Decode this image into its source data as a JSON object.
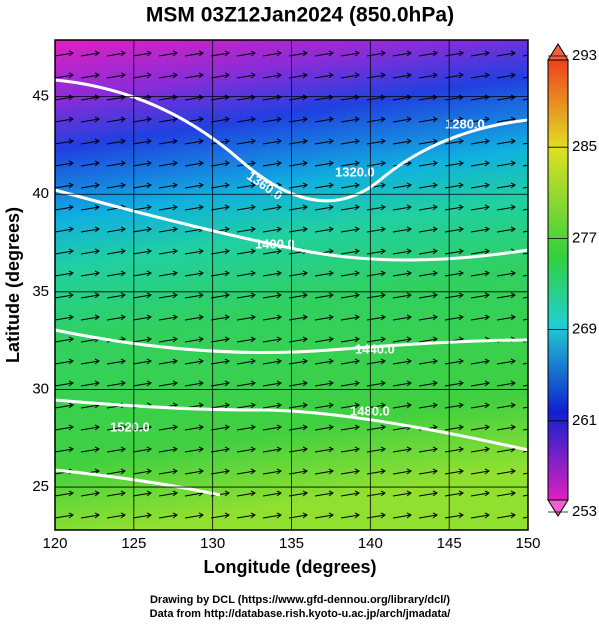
{
  "title": "MSM 03Z12Jan2024 (850.0hPa)",
  "x_axis": {
    "label": "Longitude (degrees)",
    "lim": [
      120,
      150
    ],
    "ticks": [
      120,
      125,
      130,
      135,
      140,
      145,
      150
    ]
  },
  "y_axis": {
    "label": "Latitude  (degrees)",
    "lim": [
      22.8,
      47.9
    ],
    "ticks": [
      25,
      30,
      35,
      40,
      45
    ]
  },
  "colorbar": {
    "lim": [
      253,
      293
    ],
    "ticks": [
      253,
      261,
      269,
      277,
      285,
      293
    ]
  },
  "contour_labels": [
    "1360.0",
    "1320.0",
    "1400.0",
    "1440.0",
    "1480.0",
    "1520.0",
    "1280.0"
  ],
  "footer": [
    "Drawing by DCL (https://www.gfd-dennou.org/library/dcl/)",
    "Data from http://database.rish.kyoto-u.ac.jp/arch/jmadata/"
  ]
}
